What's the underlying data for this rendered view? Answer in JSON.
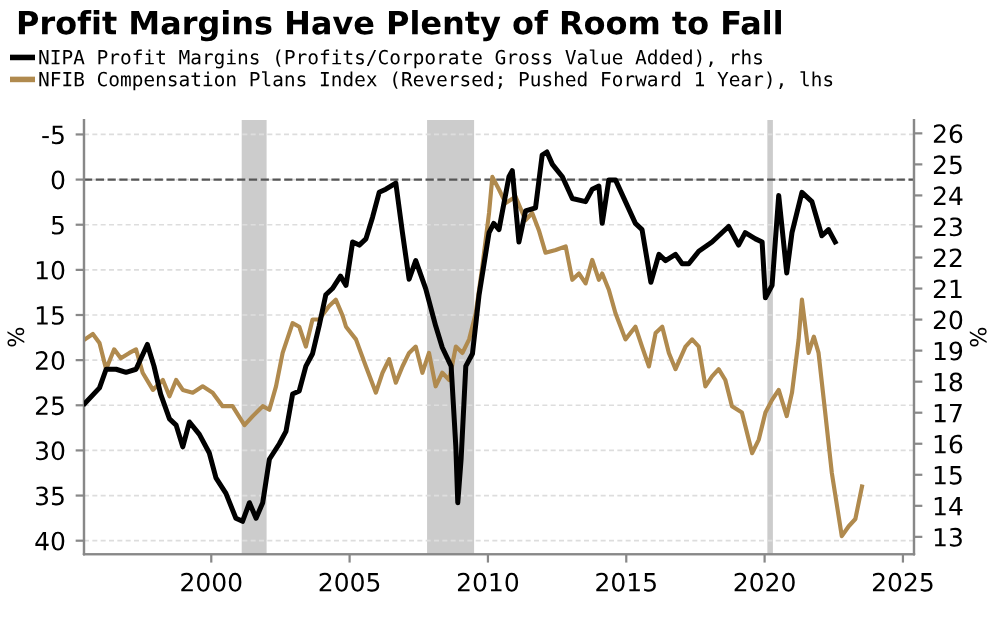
{
  "chart_data": {
    "type": "line",
    "title": "Profit Margins Have Plenty of Room to Fall",
    "ylabel": "%",
    "y2label": "%",
    "series": [
      {
        "name": "NIPA Profit Margins (Profits/Corporate Gross Value Added), rhs",
        "color": "#000000",
        "axis": "y2",
        "x": [
          1995.43,
          1995.96,
          1996.2,
          1996.56,
          1996.92,
          1997.28,
          1997.69,
          1997.93,
          1998.17,
          1998.49,
          1998.73,
          1998.97,
          1999.21,
          1999.57,
          1999.93,
          2000.17,
          2000.53,
          2000.89,
          2001.13,
          2001.38,
          2001.62,
          2001.86,
          2002.1,
          2002.46,
          2002.7,
          2002.94,
          2003.18,
          2003.42,
          2003.66,
          2003.9,
          2004.14,
          2004.38,
          2004.67,
          2004.87,
          2005.11,
          2005.35,
          2005.59,
          2005.83,
          2006.07,
          2006.31,
          2006.67,
          2006.91,
          2007.15,
          2007.39,
          2007.75,
          2008.11,
          2008.35,
          2008.67,
          2008.84,
          2008.91,
          2009.03,
          2009.2,
          2009.44,
          2009.68,
          2010.04,
          2010.21,
          2010.4,
          2010.76,
          2010.88,
          2011.12,
          2011.36,
          2011.72,
          2011.96,
          2012.13,
          2012.33,
          2012.69,
          2013.05,
          2013.53,
          2013.77,
          2014.01,
          2014.13,
          2014.37,
          2014.61,
          2014.97,
          2015.33,
          2015.57,
          2015.89,
          2016.18,
          2016.42,
          2016.78,
          2017.02,
          2017.26,
          2017.62,
          2018.1,
          2018.7,
          2019.06,
          2019.3,
          2019.67,
          2019.91,
          2020.03,
          2020.27,
          2020.51,
          2020.8,
          2020.99,
          2021.35,
          2021.71,
          2022.07,
          2022.31,
          2022.55
        ],
        "values": [
          17.3,
          17.8,
          18.4,
          18.4,
          18.3,
          18.4,
          19.2,
          18.5,
          17.6,
          16.8,
          16.6,
          15.9,
          16.7,
          16.3,
          15.7,
          14.9,
          14.4,
          13.6,
          13.5,
          14.1,
          13.6,
          14.1,
          15.5,
          16.0,
          16.4,
          17.6,
          17.7,
          18.5,
          18.9,
          19.8,
          20.8,
          21.0,
          21.4,
          21.1,
          22.5,
          22.4,
          22.6,
          23.3,
          24.1,
          24.2,
          24.4,
          22.8,
          21.3,
          21.9,
          21.0,
          19.8,
          19.1,
          18.5,
          15.9,
          14.1,
          15.5,
          18.5,
          18.9,
          20.8,
          22.8,
          23.1,
          22.9,
          24.6,
          24.8,
          22.5,
          23.5,
          23.6,
          25.3,
          25.4,
          25.0,
          24.6,
          23.9,
          23.8,
          24.2,
          24.3,
          23.1,
          24.5,
          24.5,
          23.8,
          23.1,
          22.9,
          21.2,
          22.1,
          21.9,
          22.1,
          21.8,
          21.8,
          22.2,
          22.5,
          23.0,
          22.4,
          22.8,
          22.6,
          22.5,
          20.7,
          21.1,
          24.0,
          21.5,
          22.8,
          24.1,
          23.8,
          22.7,
          22.9,
          22.5
        ]
      },
      {
        "name": "NFIB Compensation Plans Index (Reversed; Pushed Forward 1 Year), lhs",
        "color": "#b08a4e",
        "x": [
          1995.43,
          1995.72,
          1995.96,
          1996.2,
          1996.49,
          1996.73,
          1997.04,
          1997.28,
          1997.52,
          1997.89,
          1998.25,
          1998.49,
          1998.73,
          1998.97,
          1999.33,
          1999.69,
          2000.05,
          2000.41,
          2000.77,
          2001.2,
          2001.5,
          2001.86,
          2002.1,
          2002.34,
          2002.58,
          2002.94,
          2003.18,
          2003.42,
          2003.66,
          2003.9,
          2004.26,
          2004.5,
          2004.75,
          2004.87,
          2005.23,
          2005.59,
          2005.95,
          2006.19,
          2006.43,
          2006.67,
          2006.91,
          2007.15,
          2007.39,
          2007.63,
          2007.87,
          2008.11,
          2008.35,
          2008.6,
          2008.84,
          2009.08,
          2009.32,
          2009.56,
          2009.8,
          2010.04,
          2010.16,
          2010.4,
          2010.64,
          2011.0,
          2011.36,
          2011.6,
          2011.84,
          2012.08,
          2012.45,
          2012.81,
          2013.05,
          2013.29,
          2013.53,
          2013.77,
          2014.01,
          2014.13,
          2014.37,
          2014.61,
          2014.97,
          2015.33,
          2015.57,
          2015.82,
          2016.06,
          2016.3,
          2016.54,
          2016.78,
          2017.14,
          2017.38,
          2017.62,
          2017.86,
          2018.1,
          2018.34,
          2018.58,
          2018.82,
          2019.18,
          2019.55,
          2019.79,
          2020.03,
          2020.27,
          2020.51,
          2020.8,
          2020.99,
          2021.23,
          2021.35,
          2021.59,
          2021.78,
          2021.95,
          2022.19,
          2022.43,
          2022.79,
          2023.04,
          2023.28,
          2023.52
        ],
        "values": [
          17.7,
          17.1,
          18.1,
          21.0,
          18.8,
          19.8,
          19.2,
          18.8,
          21.4,
          23.3,
          22.2,
          24.0,
          22.2,
          23.3,
          23.6,
          22.9,
          23.6,
          25.1,
          25.1,
          27.2,
          26.2,
          25.1,
          25.5,
          22.9,
          19.2,
          15.9,
          16.3,
          18.5,
          15.5,
          15.5,
          14.0,
          13.3,
          15.1,
          16.3,
          17.7,
          20.7,
          23.6,
          21.4,
          19.9,
          22.5,
          20.7,
          19.2,
          18.5,
          21.4,
          19.2,
          22.9,
          21.4,
          22.2,
          18.5,
          19.2,
          17.7,
          14.8,
          9.6,
          3.7,
          -0.3,
          1.1,
          2.6,
          1.9,
          4.5,
          3.7,
          5.6,
          8.1,
          7.8,
          7.4,
          11.1,
          10.4,
          11.5,
          8.9,
          11.1,
          10.4,
          12.2,
          14.8,
          17.7,
          16.3,
          18.5,
          20.7,
          17.0,
          16.3,
          19.2,
          21.0,
          18.5,
          17.7,
          18.5,
          22.9,
          21.8,
          21.0,
          22.2,
          25.1,
          25.8,
          30.3,
          28.8,
          25.8,
          24.4,
          23.3,
          26.2,
          23.6,
          17.7,
          13.3,
          19.2,
          17.4,
          19.2,
          25.8,
          32.5,
          39.5,
          38.4,
          37.6,
          34.0
        ]
      }
    ],
    "xlim": [
      1995.4,
      2025.4
    ],
    "xticks": [
      2000,
      2005,
      2010,
      2015,
      2020,
      2025
    ],
    "ylim": [
      41.5,
      -6.6
    ],
    "yticks": [
      -5,
      0,
      5,
      10,
      15,
      20,
      25,
      30,
      35,
      40
    ],
    "y2lim": [
      12.44,
      26.43
    ],
    "y2ticks": [
      13,
      14,
      15,
      16,
      17,
      18,
      19,
      20,
      21,
      22,
      23,
      24,
      25,
      26
    ],
    "ref_lines": [
      {
        "axis": "y",
        "value": 0,
        "color": "#555555",
        "line_style": "dashed"
      }
    ],
    "bands": [
      {
        "axis": "x",
        "from": 2001.1,
        "to": 2002.0,
        "color": "#cccccc"
      },
      {
        "axis": "x",
        "from": 2007.8,
        "to": 2009.5,
        "color": "#cccccc"
      },
      {
        "axis": "x",
        "from": 2020.1,
        "to": 2020.3,
        "color": "#cccccc"
      }
    ],
    "grid": "y",
    "legend": "top"
  }
}
